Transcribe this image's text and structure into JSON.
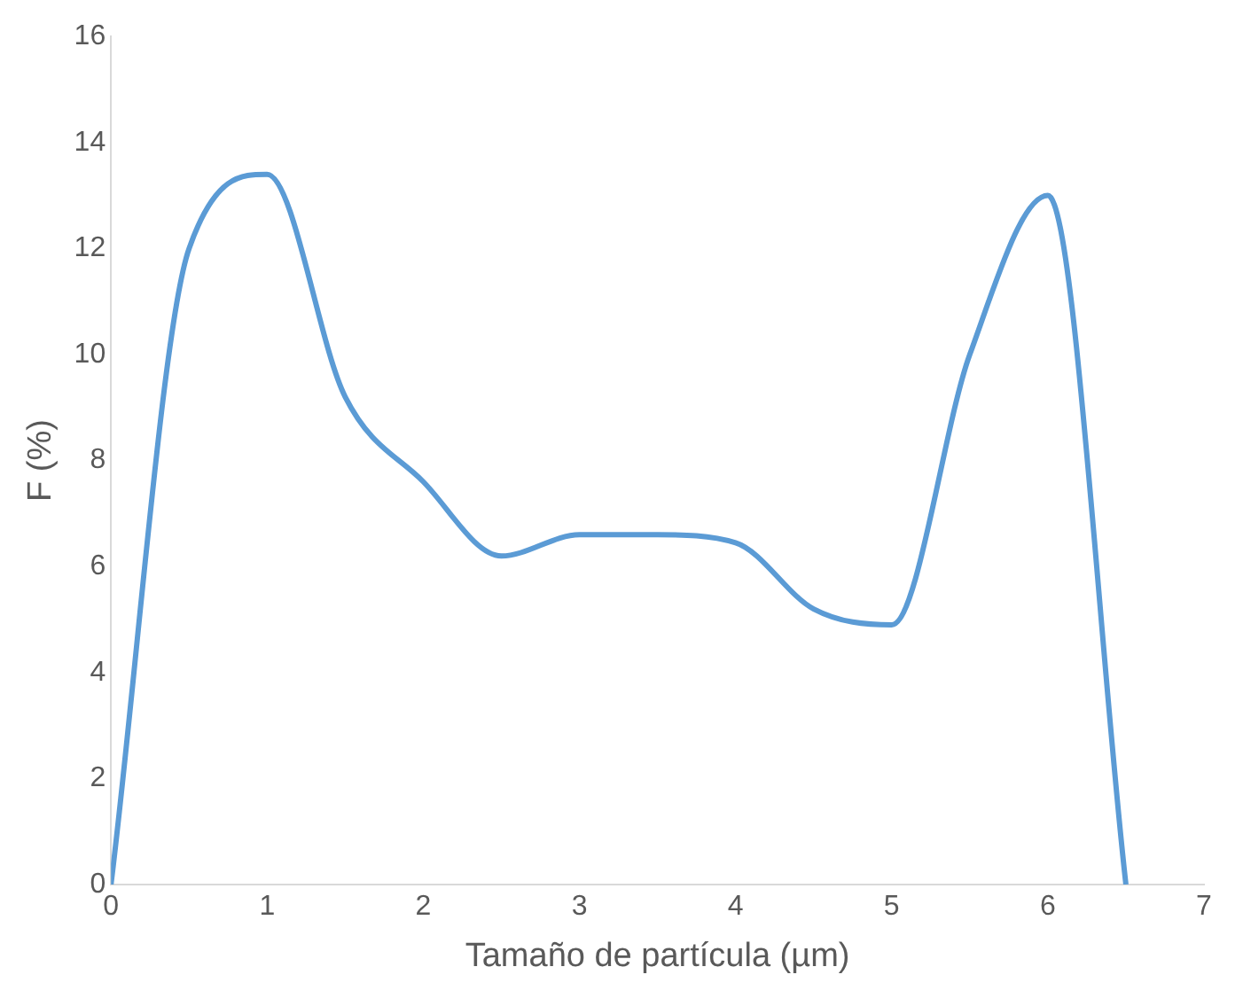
{
  "chart_data": {
    "type": "line",
    "xlabel": "Tamaño de partícula (µm)",
    "ylabel": "F (%)",
    "x": [
      0,
      0.5,
      1,
      1.5,
      2,
      2.5,
      3,
      3.5,
      4,
      4.5,
      5,
      5.5,
      6,
      6.5
    ],
    "series": [
      {
        "color": "#5b9bd5",
        "values": [
          0,
          12.0,
          13.4,
          9.2,
          7.6,
          6.2,
          6.6,
          6.6,
          6.45,
          5.2,
          4.9,
          10.0,
          13.0,
          0
        ]
      }
    ],
    "xlim": [
      0,
      7
    ],
    "xticks": [
      0,
      1,
      2,
      3,
      4,
      5,
      6,
      7
    ],
    "ylim": [
      0,
      16
    ],
    "yticks": [
      0,
      2,
      4,
      6,
      8,
      10,
      12,
      14,
      16
    ],
    "grid": false,
    "legend": false,
    "marker": "none",
    "line_style": "solid"
  }
}
